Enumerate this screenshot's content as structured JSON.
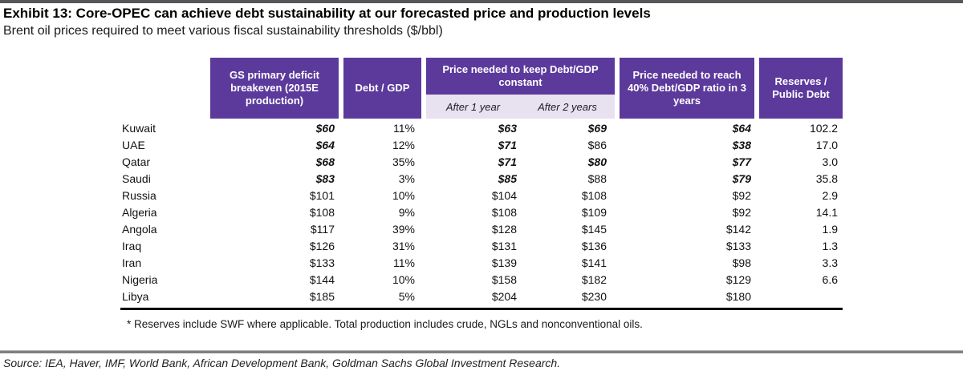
{
  "exhibit": {
    "title": "Exhibit 13: Core-OPEC can achieve debt sustainability at our forecasted price and production levels",
    "subtitle": "Brent oil prices required to meet various fiscal sustainability thresholds ($/bbl)",
    "footnote": "* Reserves include SWF where applicable. Total production includes crude, NGLs and nonconventional oils.",
    "source": "Source: IEA, Haver, IMF, World Bank, African Development Bank, Goldman Sachs Global Investment Research."
  },
  "colors": {
    "header_purple": "#5C3A9C",
    "subheader_lavender": "#E8E2F0",
    "top_bar_gray": "#55565A",
    "bottom_rule_gray": "#7F7F7F",
    "highlight_style": "bold-italic"
  },
  "table": {
    "headers": {
      "col_deficit": "GS primary deficit breakeven (2015E production)",
      "col_debt_gdp": "Debt / GDP",
      "col_price_constant": "Price needed to keep Debt/GDP constant",
      "sub_after1": "After 1 year",
      "sub_after2": "After 2 years",
      "col_price_40": "Price needed to reach 40% Debt/GDP ratio in 3 years",
      "col_reserves": "Reserves / Public Debt"
    },
    "rows": [
      {
        "country": "Kuwait",
        "deficit": "$60",
        "deficit_hl": true,
        "debt_gdp": "11%",
        "after1": "$63",
        "after1_hl": true,
        "after2": "$69",
        "after2_hl": true,
        "reach40": "$64",
        "reach40_hl": true,
        "reserves": "102.2"
      },
      {
        "country": "UAE",
        "deficit": "$64",
        "deficit_hl": true,
        "debt_gdp": "12%",
        "after1": "$71",
        "after1_hl": true,
        "after2": "$86",
        "after2_hl": false,
        "reach40": "$38",
        "reach40_hl": true,
        "reserves": "17.0"
      },
      {
        "country": "Qatar",
        "deficit": "$68",
        "deficit_hl": true,
        "debt_gdp": "35%",
        "after1": "$71",
        "after1_hl": true,
        "after2": "$80",
        "after2_hl": true,
        "reach40": "$77",
        "reach40_hl": true,
        "reserves": "3.0"
      },
      {
        "country": "Saudi",
        "deficit": "$83",
        "deficit_hl": true,
        "debt_gdp": "3%",
        "after1": "$85",
        "after1_hl": true,
        "after2": "$88",
        "after2_hl": false,
        "reach40": "$79",
        "reach40_hl": true,
        "reserves": "35.8"
      },
      {
        "country": "Russia",
        "deficit": "$101",
        "deficit_hl": false,
        "debt_gdp": "10%",
        "after1": "$104",
        "after1_hl": false,
        "after2": "$108",
        "after2_hl": false,
        "reach40": "$92",
        "reach40_hl": false,
        "reserves": "2.9"
      },
      {
        "country": "Algeria",
        "deficit": "$108",
        "deficit_hl": false,
        "debt_gdp": "9%",
        "after1": "$108",
        "after1_hl": false,
        "after2": "$109",
        "after2_hl": false,
        "reach40": "$92",
        "reach40_hl": false,
        "reserves": "14.1"
      },
      {
        "country": "Angola",
        "deficit": "$117",
        "deficit_hl": false,
        "debt_gdp": "39%",
        "after1": "$128",
        "after1_hl": false,
        "after2": "$145",
        "after2_hl": false,
        "reach40": "$142",
        "reach40_hl": false,
        "reserves": "1.9"
      },
      {
        "country": "Iraq",
        "deficit": "$126",
        "deficit_hl": false,
        "debt_gdp": "31%",
        "after1": "$131",
        "after1_hl": false,
        "after2": "$136",
        "after2_hl": false,
        "reach40": "$133",
        "reach40_hl": false,
        "reserves": "1.3"
      },
      {
        "country": "Iran",
        "deficit": "$133",
        "deficit_hl": false,
        "debt_gdp": "11%",
        "after1": "$139",
        "after1_hl": false,
        "after2": "$141",
        "after2_hl": false,
        "reach40": "$98",
        "reach40_hl": false,
        "reserves": "3.3"
      },
      {
        "country": "Nigeria",
        "deficit": "$144",
        "deficit_hl": false,
        "debt_gdp": "10%",
        "after1": "$158",
        "after1_hl": false,
        "after2": "$182",
        "after2_hl": false,
        "reach40": "$129",
        "reach40_hl": false,
        "reserves": "6.6"
      },
      {
        "country": "Libya",
        "deficit": "$185",
        "deficit_hl": false,
        "debt_gdp": "5%",
        "after1": "$204",
        "after1_hl": false,
        "after2": "$230",
        "after2_hl": false,
        "reach40": "$180",
        "reach40_hl": false,
        "reserves": ""
      }
    ]
  }
}
